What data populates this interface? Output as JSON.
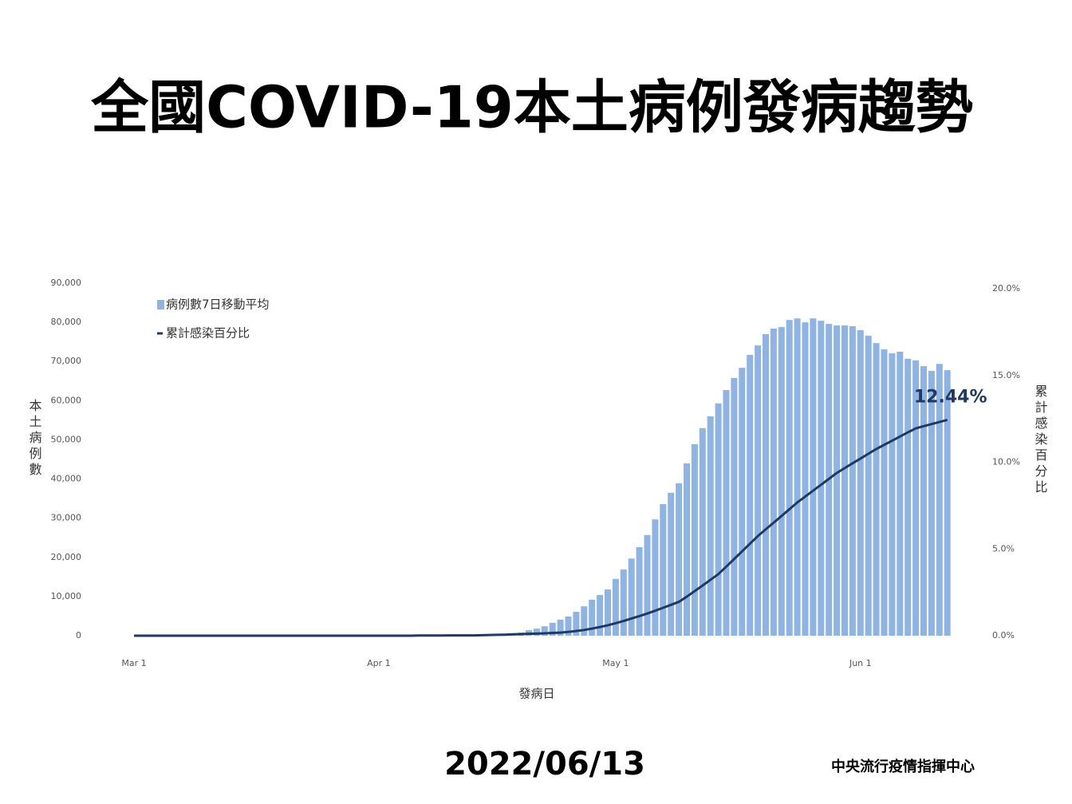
{
  "chart_data": {
    "type": "bar_line",
    "title": "全國COVID-19本土病例發病趨勢",
    "ylabel": "本土病例數",
    "y2label": "累計感染百分比",
    "xlabel": "發病日",
    "date": "2022/06/13",
    "source": "中央流行疫情指揮中心",
    "legend": "upper left",
    "categories": [
      "Mar 1",
      null,
      null,
      null,
      null,
      null,
      null,
      null,
      null,
      null,
      null,
      null,
      null,
      null,
      null,
      null,
      null,
      null,
      null,
      null,
      null,
      null,
      null,
      null,
      null,
      null,
      null,
      null,
      null,
      null,
      null,
      "Apr 1",
      null,
      null,
      null,
      null,
      null,
      null,
      null,
      null,
      null,
      null,
      null,
      null,
      null,
      null,
      null,
      null,
      null,
      null,
      null,
      null,
      null,
      null,
      null,
      null,
      null,
      null,
      null,
      null,
      null,
      "May 1",
      null,
      null,
      null,
      null,
      null,
      null,
      null,
      null,
      null,
      null,
      null,
      null,
      null,
      null,
      null,
      null,
      null,
      null,
      null,
      null,
      null,
      null,
      null,
      null,
      null,
      null,
      null,
      null,
      null,
      null,
      "Jun 1",
      null,
      null,
      null,
      null,
      null,
      null,
      null,
      null,
      null,
      null,
      null
    ],
    "series": [
      {
        "name": "病例數7日移動平均",
        "type": "bar",
        "color": "#8fb4e3",
        "values": [
          0,
          0,
          0,
          0,
          0,
          0,
          0,
          0,
          0,
          0,
          0,
          0,
          0,
          0,
          0,
          0,
          0,
          0,
          0,
          0,
          0,
          0,
          0,
          0,
          0,
          0,
          0,
          0,
          0,
          0,
          10,
          10,
          20,
          20,
          30,
          30,
          40,
          50,
          60,
          80,
          100,
          120,
          150,
          200,
          250,
          320,
          400,
          500,
          600,
          800,
          1400,
          1800,
          2400,
          3300,
          4100,
          4900,
          6100,
          7500,
          9200,
          10400,
          11800,
          14500,
          16900,
          19700,
          22600,
          25700,
          29700,
          33600,
          36500,
          38900,
          44000,
          48900,
          53000,
          56000,
          59300,
          62700,
          65800,
          68400,
          71700,
          74100,
          77000,
          78400,
          78800,
          80600,
          81000,
          80000,
          81000,
          80400,
          79600,
          79200,
          79200,
          79000,
          78000,
          76600,
          74700,
          73100,
          72100,
          72500,
          70700,
          70300,
          68800,
          67600,
          69400,
          67800
        ]
      },
      {
        "name": "累計感染百分比",
        "type": "line",
        "axis": "y2",
        "color": "#1f3864",
        "values": [
          0,
          0,
          0,
          0,
          0,
          0,
          0,
          0,
          0,
          0,
          0,
          0,
          0,
          0,
          0,
          0,
          0,
          0,
          0,
          0,
          0,
          0,
          0,
          0,
          0,
          0,
          0,
          0,
          0,
          0,
          0,
          0,
          0,
          0,
          0,
          0,
          0.01,
          0.01,
          0.01,
          0.01,
          0.02,
          0.02,
          0.02,
          0.02,
          0.03,
          0.04,
          0.05,
          0.06,
          0.08,
          0.09,
          0.11,
          0.12,
          0.14,
          0.16,
          0.18,
          0.22,
          0.27,
          0.33,
          0.41,
          0.5,
          0.6,
          0.72,
          0.85,
          0.99,
          1.13,
          1.28,
          1.44,
          1.61,
          1.78,
          1.95,
          2.25,
          2.57,
          2.89,
          3.22,
          3.55,
          3.98,
          4.42,
          4.86,
          5.3,
          5.74,
          6.13,
          6.51,
          6.9,
          7.29,
          7.68,
          8.02,
          8.36,
          8.7,
          9.04,
          9.38,
          9.66,
          9.94,
          10.21,
          10.49,
          10.76,
          11.0,
          11.24,
          11.48,
          11.72,
          11.95,
          12.08,
          12.2,
          12.32,
          12.44
        ],
        "value_labels": [
          null,
          null,
          null,
          null,
          null,
          null,
          null,
          null,
          null,
          null,
          null,
          null,
          null,
          null,
          null,
          null,
          null,
          null,
          null,
          null,
          null,
          null,
          null,
          null,
          null,
          null,
          null,
          null,
          null,
          null,
          null,
          null,
          null,
          null,
          null,
          null,
          null,
          null,
          null,
          null,
          null,
          null,
          null,
          null,
          null,
          null,
          null,
          null,
          null,
          null,
          null,
          null,
          null,
          null,
          null,
          null,
          null,
          null,
          null,
          null,
          null,
          null,
          null,
          null,
          null,
          null,
          null,
          null,
          null,
          null,
          null,
          null,
          null,
          null,
          null,
          null,
          null,
          null,
          null,
          null,
          null,
          null,
          null,
          null,
          null,
          null,
          null,
          null,
          null,
          null,
          null,
          null,
          null,
          null,
          null,
          null,
          null,
          null,
          null,
          null,
          null,
          null,
          null,
          "12.44%"
        ]
      }
    ],
    "ylim": [
      0,
      90000
    ],
    "yticks": [
      0,
      {
        "value": 10000,
        "label": "10,000"
      },
      {
        "value": 20000,
        "label": "20,000"
      },
      {
        "value": 30000,
        "label": "30,000"
      },
      {
        "value": 40000,
        "label": "40,000"
      },
      {
        "value": 50000,
        "label": "50,000"
      },
      {
        "value": 60000,
        "label": "60,000"
      },
      {
        "value": 70000,
        "label": "70,000"
      },
      {
        "value": 80000,
        "label": "80,000"
      },
      {
        "value": 90000,
        "label": "90,000"
      }
    ],
    "y2lim": [
      0,
      20
    ],
    "y2ticks": [
      {
        "value": 0,
        "label": "0.0%"
      },
      {
        "value": 5,
        "label": "5.0%"
      },
      {
        "value": 10,
        "label": "10.0%"
      },
      {
        "value": 15,
        "label": "15.0%"
      },
      {
        "value": 20,
        "label": "20.0%"
      }
    ],
    "grid": false
  }
}
